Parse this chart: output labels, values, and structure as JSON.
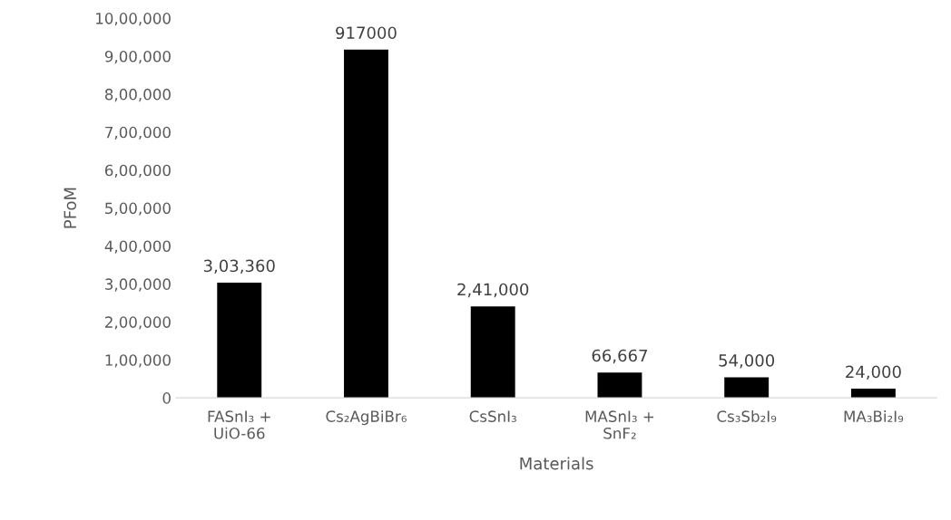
{
  "chart_data": {
    "type": "bar",
    "xlabel": "Materials",
    "ylabel": "PFoM",
    "categories": [
      "FASnI₃ +\nUiO-66",
      "Cs₂AgBiBr₆",
      "CsSnI₃",
      "MASnI₃ +\nSnF₂",
      "Cs₃Sb₂I₉",
      "MA₃Bi₂I₉"
    ],
    "values": [
      303360,
      917000,
      241000,
      66667,
      54000,
      24000
    ],
    "value_labels": [
      "3,03,360",
      "917000",
      "2,41,000",
      "66,667",
      "54,000",
      "24,000"
    ],
    "color": "#000000",
    "ylim": [
      0,
      1000000
    ],
    "yticks": [
      {
        "value": 0,
        "label": "0"
      },
      {
        "value": 100000,
        "label": "1,00,000"
      },
      {
        "value": 200000,
        "label": "2,00,000"
      },
      {
        "value": 300000,
        "label": "3,00,000"
      },
      {
        "value": 400000,
        "label": "4,00,000"
      },
      {
        "value": 500000,
        "label": "5,00,000"
      },
      {
        "value": 600000,
        "label": "6,00,000"
      },
      {
        "value": 700000,
        "label": "7,00,000"
      },
      {
        "value": 800000,
        "label": "8,00,000"
      },
      {
        "value": 900000,
        "label": "9,00,000"
      },
      {
        "value": 1000000,
        "label": "10,00,000"
      }
    ],
    "grid": false,
    "legend": false
  }
}
